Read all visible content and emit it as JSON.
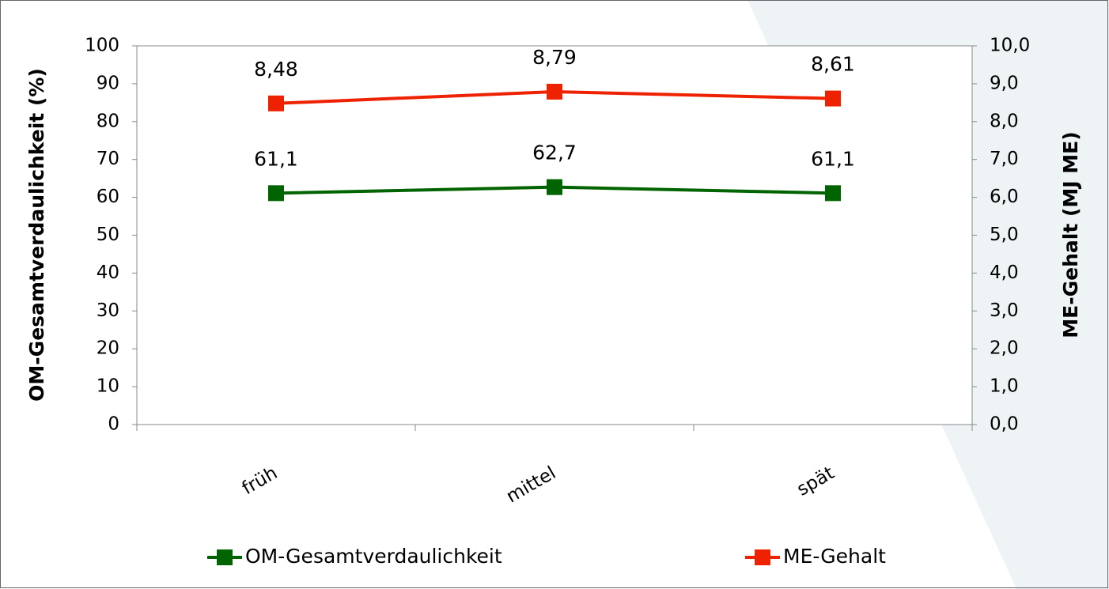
{
  "chart_data": {
    "type": "line",
    "categories": [
      "früh",
      "mittel",
      "spät"
    ],
    "series": [
      {
        "name": "OM-Gesamtverdaulichkeit",
        "color": "#006400",
        "values": [
          61.1,
          62.7,
          61.1
        ],
        "value_labels": [
          "61,1",
          "62,7",
          "61,1"
        ]
      },
      {
        "name": "ME-Gehalt",
        "color": "#ee2200",
        "values": [
          8.48,
          8.79,
          8.61
        ],
        "value_labels": [
          "8,48",
          "8,79",
          "8,61"
        ],
        "axis": "y2"
      }
    ],
    "ylabel": "OM-Gesamtverdaulichkeit  (%)",
    "y2label": "ME-Gehalt (MJ ME)",
    "ylim": [
      0,
      100
    ],
    "yticks": [
      0,
      10,
      20,
      30,
      40,
      50,
      60,
      70,
      80,
      90,
      100
    ],
    "y2lim": [
      0,
      10
    ],
    "y2ticks": [
      {
        "value": 0,
        "label": "0,0"
      },
      {
        "value": 1,
        "label": "1,0"
      },
      {
        "value": 2,
        "label": "2,0"
      },
      {
        "value": 3,
        "label": "3,0"
      },
      {
        "value": 4,
        "label": "4,0"
      },
      {
        "value": 5,
        "label": "5,0"
      },
      {
        "value": 6,
        "label": "6,0"
      },
      {
        "value": 7,
        "label": "7,0"
      },
      {
        "value": 8,
        "label": "8,0"
      },
      {
        "value": 9,
        "label": "9,0"
      },
      {
        "value": 10,
        "label": "10,0"
      }
    ],
    "legend": "bottom"
  }
}
